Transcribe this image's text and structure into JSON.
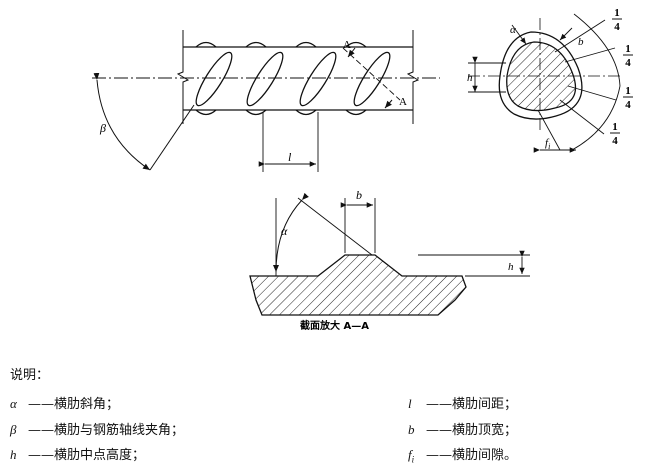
{
  "figure": {
    "labels": {
      "section_A_top": "A",
      "section_A_bottom": "A",
      "beta": "β",
      "l": "l",
      "alpha_cross": "α",
      "b_cross": "b",
      "h_cross": "h",
      "fi": "f",
      "fi_sub": "i",
      "quarter_numerator": "1",
      "quarter_denominator": "4",
      "alpha_section": "α",
      "b_section": "b",
      "h_section": "h",
      "section_caption": "截面放大 A—A"
    }
  },
  "legend": {
    "title": "说明：",
    "items": [
      {
        "symbol": "α",
        "text": "——横肋斜角；"
      },
      {
        "symbol": "β",
        "text": "——横肋与钢筋轴线夹角；"
      },
      {
        "symbol": "h",
        "text": "——横肋中点高度；"
      },
      {
        "symbol": "l",
        "text": "——横肋间距；"
      },
      {
        "symbol": "b",
        "text": "——横肋顶宽；"
      },
      {
        "symbol": "f",
        "symbol_sub": "i",
        "text": "——横肋间隙。"
      }
    ]
  }
}
